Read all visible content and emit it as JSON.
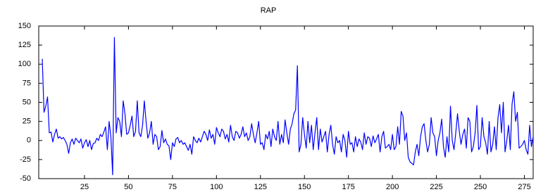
{
  "chart_data": {
    "type": "line",
    "title": "RAP",
    "x": [
      1,
      2,
      3,
      4,
      5,
      6,
      7,
      8,
      9,
      10,
      11,
      12,
      13,
      14,
      15,
      16,
      17,
      18,
      19,
      20,
      21,
      22,
      23,
      24,
      25,
      26,
      27,
      28,
      29,
      30,
      31,
      32,
      33,
      34,
      35,
      36,
      37,
      38,
      39,
      40,
      41,
      42,
      43,
      44,
      45,
      46,
      47,
      48,
      49,
      50,
      51,
      52,
      53,
      54,
      55,
      56,
      57,
      58,
      59,
      60,
      61,
      62,
      63,
      64,
      65,
      66,
      67,
      68,
      69,
      70,
      71,
      72,
      73,
      74,
      75,
      76,
      77,
      78,
      79,
      80,
      81,
      82,
      83,
      84,
      85,
      86,
      87,
      88,
      89,
      90,
      91,
      92,
      93,
      94,
      95,
      96,
      97,
      98,
      99,
      100,
      101,
      102,
      103,
      104,
      105,
      106,
      107,
      108,
      109,
      110,
      111,
      112,
      113,
      114,
      115,
      116,
      117,
      118,
      119,
      120,
      121,
      122,
      123,
      124,
      125,
      126,
      127,
      128,
      129,
      130,
      131,
      132,
      133,
      134,
      135,
      136,
      137,
      138,
      139,
      140,
      141,
      142,
      143,
      144,
      145,
      146,
      147,
      148,
      149,
      150,
      151,
      152,
      153,
      154,
      155,
      156,
      157,
      158,
      159,
      160,
      161,
      162,
      163,
      164,
      165,
      166,
      167,
      168,
      169,
      170,
      171,
      172,
      173,
      174,
      175,
      176,
      177,
      178,
      179,
      180,
      181,
      182,
      183,
      184,
      185,
      186,
      187,
      188,
      189,
      190,
      191,
      192,
      193,
      194,
      195,
      196,
      197,
      198,
      199,
      200,
      201,
      202,
      203,
      204,
      205,
      206,
      207,
      208,
      209,
      210,
      211,
      212,
      213,
      214,
      215,
      216,
      217,
      218,
      219,
      220,
      221,
      222,
      223,
      224,
      225,
      226,
      227,
      228,
      229,
      230,
      231,
      232,
      233,
      234,
      235,
      236,
      237,
      238,
      239,
      240,
      241,
      242,
      243,
      244,
      245,
      246,
      247,
      248,
      249,
      250,
      251,
      252,
      253,
      254,
      255,
      256,
      257,
      258,
      259,
      260,
      261,
      262,
      263,
      264,
      265,
      266,
      267,
      268,
      269,
      270,
      271,
      272,
      273,
      274,
      275,
      276,
      277,
      278,
      279,
      280
    ],
    "series": [
      {
        "color": "#0000ff",
        "values": [
          107,
          37,
          45,
          57,
          10,
          11,
          -2,
          8,
          15,
          3,
          5,
          2,
          4,
          0,
          -5,
          -17,
          -3,
          2,
          -5,
          3,
          0,
          -3,
          2,
          -10,
          -3,
          1,
          -8,
          0,
          -12,
          -4,
          -3,
          3,
          0,
          8,
          5,
          11,
          18,
          -12,
          25,
          5,
          -45,
          135,
          10,
          30,
          25,
          5,
          52,
          35,
          8,
          10,
          20,
          32,
          5,
          12,
          52,
          10,
          5,
          20,
          52,
          25,
          3,
          10,
          25,
          -5,
          8,
          5,
          -12,
          -8,
          13,
          -3,
          2,
          -5,
          -7,
          -25,
          -3,
          -8,
          2,
          4,
          -3,
          0,
          -5,
          -3,
          -8,
          -13,
          -5,
          -18,
          5,
          0,
          -3,
          3,
          -2,
          5,
          12,
          8,
          0,
          14,
          3,
          8,
          -5,
          17,
          10,
          5,
          15,
          12,
          2,
          8,
          -2,
          20,
          5,
          0,
          12,
          10,
          3,
          8,
          18,
          5,
          10,
          0,
          5,
          22,
          8,
          -3,
          10,
          25,
          -5,
          -3,
          -12,
          8,
          2,
          12,
          -8,
          15,
          5,
          0,
          25,
          -5,
          8,
          -3,
          27,
          10,
          -5,
          15,
          22,
          35,
          40,
          98,
          -15,
          -5,
          30,
          8,
          -10,
          25,
          -3,
          20,
          -12,
          10,
          30,
          -12,
          15,
          -2,
          5,
          12,
          -15,
          8,
          20,
          -5,
          -18,
          5,
          -3,
          0,
          -15,
          8,
          0,
          -22,
          12,
          -5,
          -3,
          -15,
          5,
          -8,
          2,
          -2,
          -12,
          10,
          -5,
          5,
          3,
          -8,
          6,
          -3,
          2,
          8,
          -15,
          5,
          12,
          -10,
          -8,
          -5,
          -12,
          8,
          -12,
          -8,
          18,
          -5,
          38,
          32,
          0,
          10,
          -22,
          -28,
          -30,
          -32,
          -15,
          -5,
          -20,
          5,
          18,
          22,
          0,
          -15,
          -5,
          30,
          10,
          5,
          -20,
          0,
          10,
          28,
          -8,
          -22,
          5,
          -15,
          45,
          0,
          -12,
          10,
          35,
          12,
          -5,
          8,
          15,
          -10,
          30,
          25,
          -15,
          -8,
          10,
          46,
          -12,
          -8,
          30,
          5,
          -3,
          -18,
          25,
          -15,
          -5,
          18,
          -12,
          30,
          47,
          10,
          50,
          -15,
          0,
          20,
          -12,
          48,
          64,
          25,
          37,
          -10,
          -8,
          -5,
          0,
          -12,
          -18,
          20,
          -8,
          5
        ]
      }
    ],
    "xlim": [
      -1,
      280
    ],
    "xticks": [
      25,
      50,
      75,
      100,
      125,
      150,
      175,
      200,
      225,
      250,
      275
    ],
    "ylim": [
      -50,
      150
    ],
    "yticks": [
      -50,
      -25,
      0,
      25,
      50,
      75,
      100,
      125,
      150
    ]
  }
}
